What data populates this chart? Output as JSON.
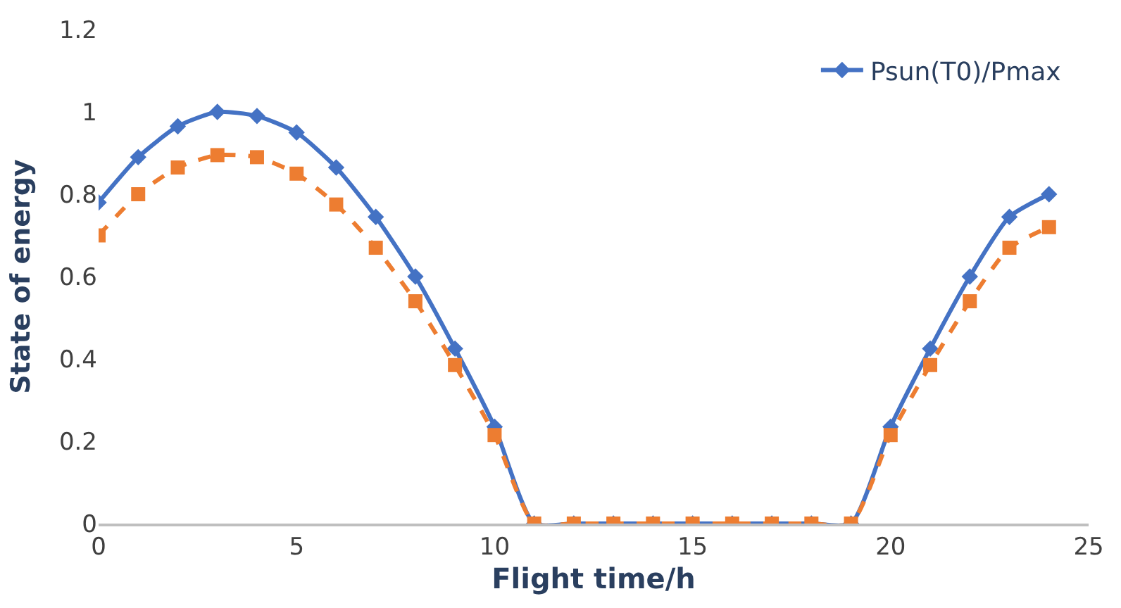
{
  "chart_data": {
    "type": "line",
    "xlabel": "Flight time/h",
    "ylabel": "State of energy",
    "x": [
      0,
      1,
      2,
      3,
      4,
      5,
      6,
      7,
      8,
      9,
      10,
      11,
      12,
      13,
      14,
      15,
      16,
      17,
      18,
      19,
      20,
      21,
      22,
      23,
      24
    ],
    "series": [
      {
        "name": "Psun(T0)/Pmax",
        "color": "#4472c4",
        "marker": "diamond",
        "line_style": "solid",
        "values": [
          0.78,
          0.89,
          0.965,
          1.0,
          0.99,
          0.95,
          0.865,
          0.745,
          0.6,
          0.425,
          0.235,
          0,
          0,
          0,
          0,
          0,
          0,
          0,
          0,
          0,
          0.235,
          0.425,
          0.6,
          0.745,
          0.8
        ]
      },
      {
        "color": "#ed7d31",
        "marker": "square",
        "line_style": "dashed",
        "values": [
          0.7,
          0.8,
          0.865,
          0.895,
          0.89,
          0.85,
          0.775,
          0.67,
          0.54,
          0.385,
          0.215,
          0,
          0,
          0,
          0,
          0,
          0,
          0,
          0,
          0,
          0.215,
          0.385,
          0.54,
          0.67,
          0.72
        ]
      }
    ],
    "xlim": [
      0,
      25
    ],
    "xticks": [
      0,
      5,
      10,
      15,
      20,
      25
    ],
    "ylim": [
      0,
      1.2
    ],
    "yticks": [
      0,
      0.2,
      0.4,
      0.6,
      0.8,
      1,
      1.2
    ],
    "legend": "top right"
  }
}
